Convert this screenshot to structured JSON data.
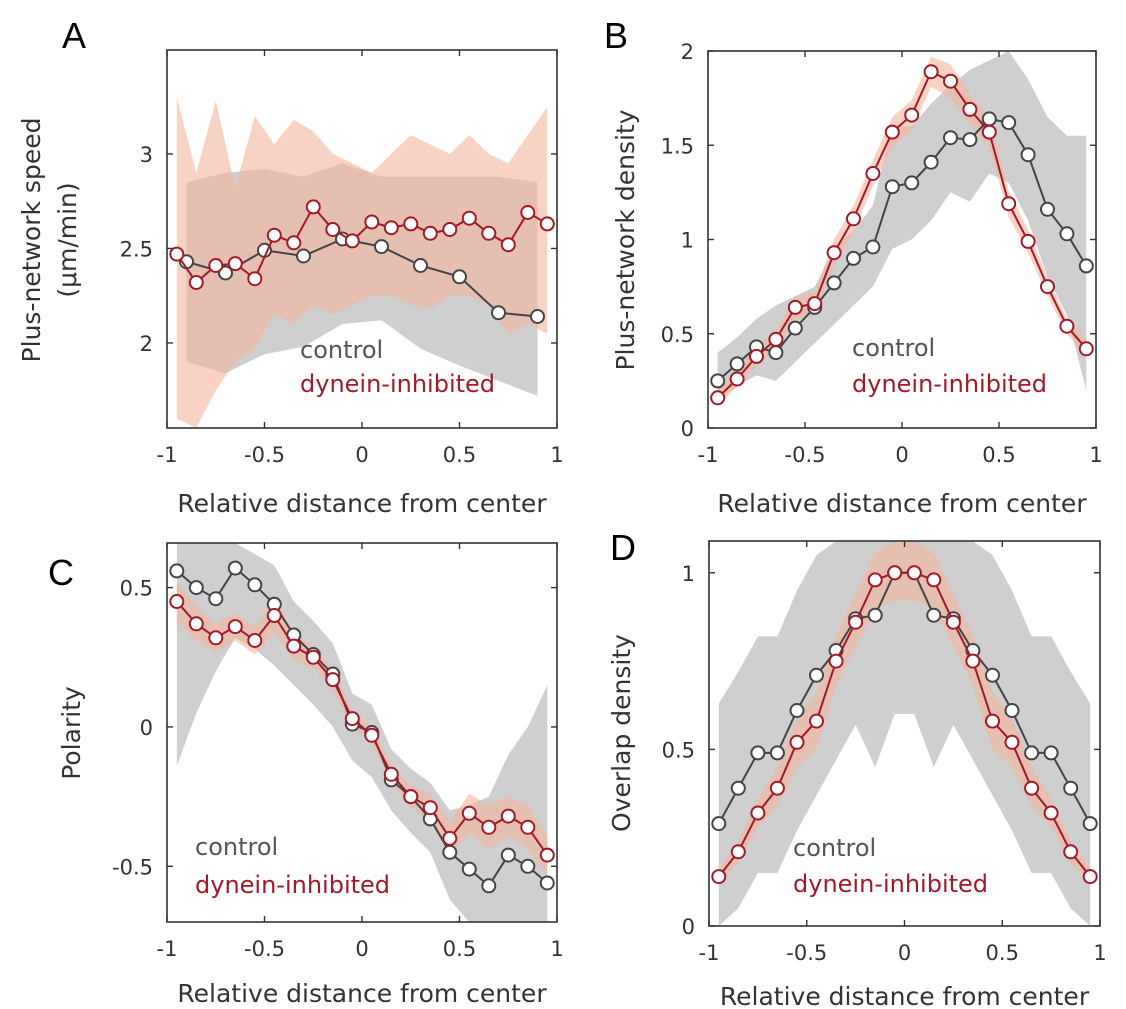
{
  "colors": {
    "control_line": "#444444",
    "control_band": "#bdbdbd",
    "dynein_line": "#a3192a",
    "dynein_band": "#f3b49b",
    "legend_control": "#555555",
    "legend_dynein": "#a3192a"
  },
  "chart_data": [
    {
      "panel": "A",
      "type": "line",
      "xlabel": "Relative distance from center",
      "ylabel": "Plus-network speed",
      "ylabel2": "(μm/min)",
      "xlim": [
        -1,
        1
      ],
      "ylim": [
        1.55,
        3.55
      ],
      "xticks": [
        -1,
        -0.5,
        0,
        0.5,
        1
      ],
      "xtick_labels": [
        "-1",
        "-0.5",
        "0",
        "0.5",
        "1"
      ],
      "yticks": [
        2,
        2.5,
        3
      ],
      "ytick_labels": [
        "2",
        "2.5",
        "3"
      ],
      "legend": [
        "control",
        "dynein-inhibited"
      ],
      "series": [
        {
          "name": "control",
          "x": [
            -0.9,
            -0.7,
            -0.5,
            -0.3,
            -0.1,
            0.1,
            0.3,
            0.5,
            0.7,
            0.9
          ],
          "y": [
            2.43,
            2.37,
            2.49,
            2.46,
            2.55,
            2.51,
            2.41,
            2.35,
            2.16,
            2.14
          ],
          "upper": [
            2.85,
            2.9,
            2.92,
            2.88,
            2.95,
            2.88,
            2.88,
            2.88,
            2.88,
            2.85
          ],
          "lower": [
            1.9,
            1.84,
            1.94,
            1.98,
            2.1,
            2.12,
            1.97,
            1.88,
            1.8,
            1.72
          ]
        },
        {
          "name": "dynein-inhibited",
          "x": [
            -0.95,
            -0.85,
            -0.75,
            -0.65,
            -0.55,
            -0.45,
            -0.35,
            -0.25,
            -0.15,
            -0.05,
            0.05,
            0.15,
            0.25,
            0.35,
            0.45,
            0.55,
            0.65,
            0.75,
            0.85,
            0.95
          ],
          "y": [
            2.47,
            2.32,
            2.41,
            2.42,
            2.34,
            2.57,
            2.53,
            2.72,
            2.6,
            2.54,
            2.64,
            2.61,
            2.63,
            2.58,
            2.6,
            2.66,
            2.58,
            2.52,
            2.69,
            2.63
          ],
          "upper": [
            3.3,
            2.9,
            3.28,
            2.82,
            3.2,
            3.05,
            3.18,
            3.12,
            3.0,
            2.95,
            2.9,
            3.0,
            3.1,
            3.05,
            3.0,
            3.1,
            3.0,
            2.95,
            3.1,
            3.25
          ],
          "lower": [
            1.6,
            1.55,
            1.75,
            1.9,
            1.97,
            2.15,
            2.1,
            2.2,
            2.15,
            2.2,
            2.25,
            2.25,
            2.2,
            2.18,
            2.25,
            2.25,
            2.2,
            2.05,
            2.1,
            2.05
          ]
        }
      ]
    },
    {
      "panel": "B",
      "type": "line",
      "xlabel": "Relative distance from center",
      "ylabel": "Plus-network density",
      "xlim": [
        -1,
        1
      ],
      "ylim": [
        0,
        2
      ],
      "xticks": [
        -1,
        -0.5,
        0,
        0.5,
        1
      ],
      "xtick_labels": [
        "-1",
        "-0.5",
        "0",
        "0.5",
        "1"
      ],
      "yticks": [
        0,
        0.5,
        1,
        1.5,
        2
      ],
      "ytick_labels": [
        "0",
        "0.5",
        "1",
        "1.5",
        "2"
      ],
      "legend": [
        "control",
        "dynein-inhibited"
      ],
      "series": [
        {
          "name": "control",
          "x": [
            -0.95,
            -0.85,
            -0.75,
            -0.65,
            -0.55,
            -0.45,
            -0.35,
            -0.25,
            -0.15,
            -0.05,
            0.05,
            0.15,
            0.25,
            0.35,
            0.45,
            0.55,
            0.65,
            0.75,
            0.85,
            0.95
          ],
          "y": [
            0.25,
            0.34,
            0.43,
            0.4,
            0.53,
            0.64,
            0.77,
            0.9,
            0.96,
            1.28,
            1.3,
            1.41,
            1.54,
            1.53,
            1.64,
            1.62,
            1.45,
            1.16,
            1.03,
            0.86
          ],
          "upper": [
            0.4,
            0.48,
            0.58,
            0.65,
            0.7,
            0.75,
            0.95,
            1.05,
            1.18,
            1.6,
            1.6,
            1.72,
            1.82,
            1.9,
            1.95,
            2.0,
            1.85,
            1.65,
            1.55,
            1.55
          ],
          "lower": [
            0.15,
            0.22,
            0.28,
            0.25,
            0.35,
            0.45,
            0.55,
            0.65,
            0.75,
            0.95,
            1.0,
            1.1,
            1.25,
            1.2,
            1.35,
            1.3,
            1.1,
            0.8,
            0.6,
            0.2
          ]
        },
        {
          "name": "dynein-inhibited",
          "x": [
            -0.95,
            -0.85,
            -0.75,
            -0.65,
            -0.55,
            -0.45,
            -0.35,
            -0.25,
            -0.15,
            -0.05,
            0.05,
            0.15,
            0.25,
            0.35,
            0.45,
            0.55,
            0.65,
            0.75,
            0.85,
            0.95
          ],
          "y": [
            0.16,
            0.26,
            0.38,
            0.47,
            0.64,
            0.66,
            0.93,
            1.11,
            1.35,
            1.57,
            1.66,
            1.89,
            1.84,
            1.69,
            1.57,
            1.19,
            0.99,
            0.75,
            0.54,
            0.42
          ],
          "upper": [
            0.2,
            0.3,
            0.43,
            0.52,
            0.7,
            0.72,
            1.0,
            1.18,
            1.42,
            1.65,
            1.74,
            1.97,
            1.93,
            1.77,
            1.65,
            1.26,
            1.05,
            0.8,
            0.58,
            0.46
          ],
          "lower": [
            0.12,
            0.22,
            0.33,
            0.42,
            0.58,
            0.6,
            0.86,
            1.04,
            1.28,
            1.49,
            1.58,
            1.81,
            1.75,
            1.61,
            1.49,
            1.12,
            0.93,
            0.7,
            0.5,
            0.38
          ]
        }
      ]
    },
    {
      "panel": "C",
      "type": "line",
      "xlabel": "Relative distance from center",
      "ylabel": "Polarity",
      "xlim": [
        -1,
        1
      ],
      "ylim": [
        -0.7,
        0.66
      ],
      "xticks": [
        -1,
        -0.5,
        0,
        0.5,
        1
      ],
      "xtick_labels": [
        "-1",
        "-0.5",
        "0",
        "0.5",
        "1"
      ],
      "yticks": [
        -0.5,
        0,
        0.5
      ],
      "ytick_labels": [
        "-0.5",
        "0",
        "0.5"
      ],
      "legend": [
        "control",
        "dynein-inhibited"
      ],
      "series": [
        {
          "name": "control",
          "x": [
            -0.95,
            -0.85,
            -0.75,
            -0.65,
            -0.55,
            -0.45,
            -0.35,
            -0.25,
            -0.15,
            -0.05,
            0.05,
            0.15,
            0.25,
            0.35,
            0.45,
            0.55,
            0.65,
            0.75,
            0.85,
            0.95
          ],
          "y": [
            0.56,
            0.5,
            0.46,
            0.57,
            0.51,
            0.44,
            0.33,
            0.26,
            0.19,
            0.01,
            -0.02,
            -0.19,
            -0.25,
            -0.33,
            -0.45,
            -0.51,
            -0.57,
            -0.46,
            -0.5,
            -0.56
          ],
          "upper": [
            0.66,
            0.66,
            0.66,
            0.66,
            0.62,
            0.58,
            0.45,
            0.38,
            0.3,
            0.12,
            0.08,
            -0.08,
            -0.15,
            -0.2,
            -0.3,
            -0.28,
            -0.25,
            -0.1,
            0.0,
            0.15
          ],
          "lower": [
            -0.14,
            0.05,
            0.2,
            0.32,
            0.28,
            0.22,
            0.15,
            0.08,
            0.0,
            -0.12,
            -0.18,
            -0.3,
            -0.38,
            -0.45,
            -0.62,
            -0.7,
            -0.7,
            -0.7,
            -0.7,
            -0.7
          ]
        },
        {
          "name": "dynein-inhibited",
          "x": [
            -0.95,
            -0.85,
            -0.75,
            -0.65,
            -0.55,
            -0.45,
            -0.35,
            -0.25,
            -0.15,
            -0.05,
            0.05,
            0.15,
            0.25,
            0.35,
            0.45,
            0.55,
            0.65,
            0.75,
            0.85,
            0.95
          ],
          "y": [
            0.45,
            0.37,
            0.32,
            0.36,
            0.31,
            0.4,
            0.29,
            0.25,
            0.17,
            0.03,
            -0.03,
            -0.17,
            -0.25,
            -0.29,
            -0.4,
            -0.31,
            -0.36,
            -0.32,
            -0.36,
            -0.46
          ],
          "upper": [
            0.52,
            0.43,
            0.37,
            0.41,
            0.36,
            0.46,
            0.34,
            0.29,
            0.21,
            0.06,
            0.0,
            -0.14,
            -0.21,
            -0.24,
            -0.34,
            -0.24,
            -0.28,
            -0.25,
            -0.28,
            -0.39
          ],
          "lower": [
            0.38,
            0.31,
            0.27,
            0.31,
            0.26,
            0.34,
            0.24,
            0.21,
            0.13,
            0.0,
            -0.06,
            -0.2,
            -0.29,
            -0.34,
            -0.46,
            -0.38,
            -0.44,
            -0.39,
            -0.44,
            -0.53
          ]
        }
      ]
    },
    {
      "panel": "D",
      "type": "line",
      "xlabel": "Relative distance from center",
      "ylabel": "Overlap density",
      "xlim": [
        -1,
        1
      ],
      "ylim": [
        0,
        1.09
      ],
      "xticks": [
        -1,
        -0.5,
        0,
        0.5,
        1
      ],
      "xtick_labels": [
        "-1",
        "-0.5",
        "0",
        "0.5",
        "1"
      ],
      "yticks": [
        0,
        0.5,
        1
      ],
      "ytick_labels": [
        "0",
        "0.5",
        "1"
      ],
      "legend": [
        "control",
        "dynein-inhibited"
      ],
      "series": [
        {
          "name": "control",
          "x": [
            -0.95,
            -0.85,
            -0.75,
            -0.65,
            -0.55,
            -0.45,
            -0.35,
            -0.25,
            -0.15,
            -0.05,
            0.05,
            0.15,
            0.25,
            0.35,
            0.45,
            0.55,
            0.65,
            0.75,
            0.85,
            0.95
          ],
          "y": [
            0.29,
            0.39,
            0.49,
            0.49,
            0.61,
            0.71,
            0.78,
            0.87,
            0.88,
            1.0,
            1.0,
            0.88,
            0.87,
            0.78,
            0.71,
            0.61,
            0.49,
            0.49,
            0.39,
            0.29
          ],
          "upper": [
            0.63,
            0.72,
            0.82,
            0.82,
            0.95,
            1.05,
            1.09,
            1.09,
            1.09,
            1.09,
            1.09,
            1.09,
            1.09,
            1.09,
            1.05,
            0.95,
            0.82,
            0.82,
            0.72,
            0.63
          ],
          "lower": [
            0.0,
            0.05,
            0.15,
            0.15,
            0.27,
            0.37,
            0.47,
            0.57,
            0.45,
            0.6,
            0.6,
            0.45,
            0.57,
            0.47,
            0.37,
            0.27,
            0.15,
            0.15,
            0.05,
            0.0
          ]
        },
        {
          "name": "dynein-inhibited",
          "x": [
            -0.95,
            -0.85,
            -0.75,
            -0.65,
            -0.55,
            -0.45,
            -0.35,
            -0.25,
            -0.15,
            -0.05,
            0.05,
            0.15,
            0.25,
            0.35,
            0.45,
            0.55,
            0.65,
            0.75,
            0.85,
            0.95
          ],
          "y": [
            0.14,
            0.21,
            0.32,
            0.39,
            0.52,
            0.58,
            0.75,
            0.86,
            0.98,
            1.0,
            1.0,
            0.98,
            0.86,
            0.75,
            0.58,
            0.52,
            0.39,
            0.32,
            0.21,
            0.14
          ],
          "upper": [
            0.16,
            0.24,
            0.36,
            0.45,
            0.59,
            0.66,
            0.82,
            0.94,
            1.06,
            1.09,
            1.09,
            1.06,
            0.94,
            0.82,
            0.66,
            0.59,
            0.45,
            0.36,
            0.24,
            0.16
          ],
          "lower": [
            0.12,
            0.18,
            0.28,
            0.34,
            0.45,
            0.5,
            0.68,
            0.79,
            0.9,
            0.92,
            0.92,
            0.9,
            0.79,
            0.68,
            0.5,
            0.45,
            0.34,
            0.28,
            0.18,
            0.12
          ]
        }
      ]
    }
  ]
}
